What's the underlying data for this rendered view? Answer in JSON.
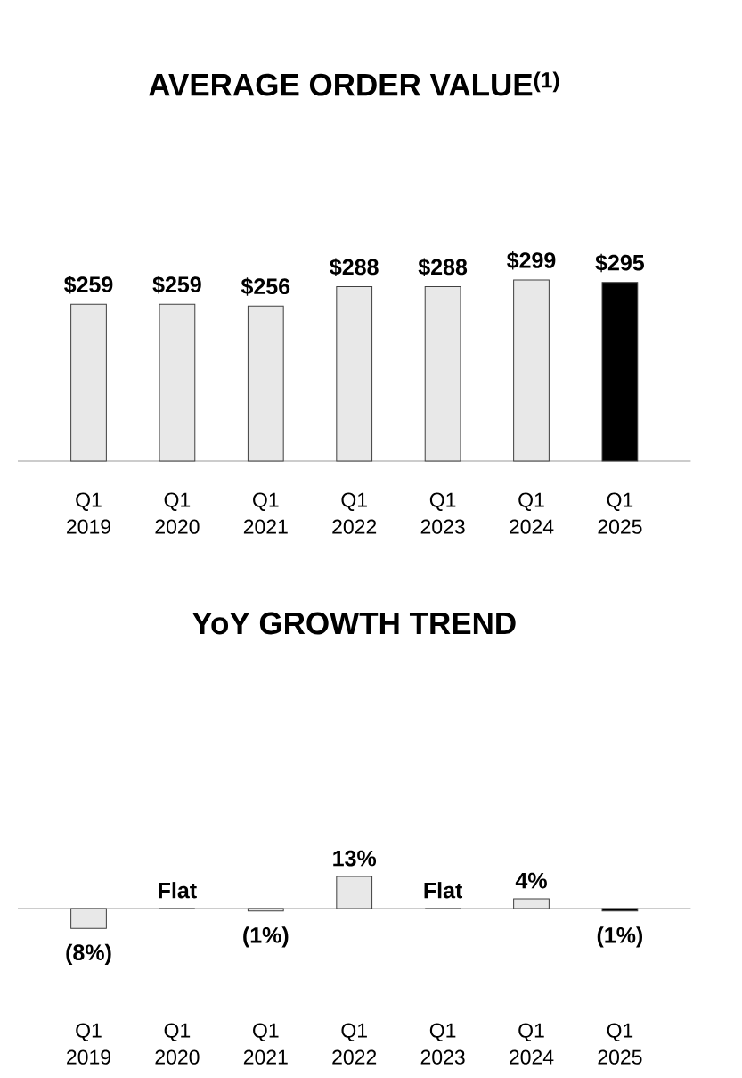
{
  "chart_data": [
    {
      "type": "bar",
      "title": "AVERAGE ORDER VALUE$^{(1)}$",
      "categories": [
        "Q1 2019",
        "Q1 2020",
        "Q1 2021",
        "Q1 2022",
        "Q1 2023",
        "Q1 2024",
        "Q1 2025"
      ],
      "values": [
        259,
        259,
        256,
        288,
        288,
        299,
        295
      ],
      "value_labels": [
        "$259",
        "$259",
        "$256",
        "$288",
        "$288",
        "$299",
        "$295"
      ],
      "colors": [
        "#e8e8e8",
        "#e8e8e8",
        "#e8e8e8",
        "#e8e8e8",
        "#e8e8e8",
        "#e8e8e8",
        "#000000"
      ]
    },
    {
      "type": "bar",
      "title": "YoY GROWTH TREND",
      "categories": [
        "Q1 2019",
        "Q1 2020",
        "Q1 2021",
        "Q1 2022",
        "Q1 2023",
        "Q1 2024",
        "Q1 2025"
      ],
      "values": [
        -8,
        0,
        -1,
        13,
        0,
        4,
        -1
      ],
      "value_labels": [
        "(8%)",
        "Flat",
        "(1%)",
        "13%",
        "Flat",
        "4%",
        "(1%)"
      ],
      "colors": [
        "#e8e8e8",
        "#e8e8e8",
        "#e8e8e8",
        "#e8e8e8",
        "#e8e8e8",
        "#e8e8e8",
        "#000000"
      ]
    }
  ]
}
